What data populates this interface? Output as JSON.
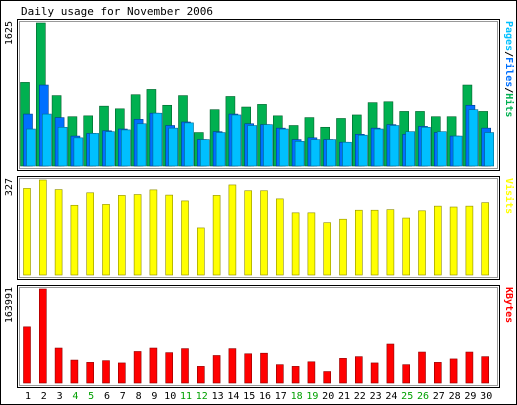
{
  "colors": {
    "page_bg": "#ffffff",
    "frame": "#000000",
    "inner_border": "#999999",
    "hits": "#00b050",
    "files": "#0070ff",
    "pages": "#00c0ff",
    "visits": "#ffff00",
    "kbytes": "#ff0000",
    "weekday_label": "#000000",
    "weekend_label": "#00a000"
  },
  "chart_data": [
    {
      "type": "bar",
      "title": "Daily usage for November 2006",
      "panel": "hits-files-pages",
      "ylabel": "Pages/Files/Hits",
      "ylabel_parts": [
        {
          "text": "Pages",
          "color": "#00c0ff"
        },
        {
          "text": "/",
          "color": "#000000"
        },
        {
          "text": "Files",
          "color": "#0070ff"
        },
        {
          "text": "/",
          "color": "#000000"
        },
        {
          "text": "Hits",
          "color": "#00b050"
        }
      ],
      "max_label": "1625",
      "ylim": [
        0,
        1625
      ],
      "categories": [
        "1",
        "2",
        "3",
        "4",
        "5",
        "6",
        "7",
        "8",
        "9",
        "10",
        "11",
        "12",
        "13",
        "14",
        "15",
        "16",
        "17",
        "18",
        "19",
        "20",
        "21",
        "22",
        "23",
        "24",
        "25",
        "26",
        "27",
        "28",
        "29",
        "30"
      ],
      "series": [
        {
          "name": "Hits",
          "color": "#00b050",
          "values": [
            950,
            1625,
            800,
            560,
            570,
            680,
            650,
            810,
            870,
            690,
            800,
            380,
            640,
            790,
            670,
            700,
            570,
            460,
            550,
            440,
            540,
            580,
            720,
            730,
            620,
            620,
            560,
            560,
            920,
            620
          ]
        },
        {
          "name": "Files",
          "color": "#0070ff",
          "values": [
            590,
            920,
            550,
            340,
            370,
            400,
            420,
            530,
            600,
            460,
            500,
            300,
            390,
            590,
            480,
            470,
            430,
            300,
            320,
            300,
            270,
            360,
            430,
            470,
            360,
            450,
            380,
            340,
            690,
            430
          ]
        },
        {
          "name": "Pages",
          "color": "#00c0ff",
          "values": [
            420,
            590,
            440,
            320,
            370,
            390,
            410,
            480,
            600,
            430,
            490,
            300,
            380,
            580,
            460,
            470,
            420,
            280,
            300,
            300,
            270,
            350,
            420,
            460,
            390,
            440,
            390,
            340,
            640,
            380
          ]
        }
      ]
    },
    {
      "type": "bar",
      "panel": "visits",
      "ylabel": "Visits",
      "max_label": "327",
      "ylim": [
        0,
        327
      ],
      "categories": [
        "1",
        "2",
        "3",
        "4",
        "5",
        "6",
        "7",
        "8",
        "9",
        "10",
        "11",
        "12",
        "13",
        "14",
        "15",
        "16",
        "17",
        "18",
        "19",
        "20",
        "21",
        "22",
        "23",
        "24",
        "25",
        "26",
        "27",
        "28",
        "29",
        "30"
      ],
      "series": [
        {
          "name": "Visits",
          "color": "#ffff00",
          "values": [
            298,
            327,
            294,
            240,
            283,
            243,
            274,
            277,
            293,
            275,
            255,
            162,
            274,
            310,
            290,
            290,
            262,
            214,
            214,
            180,
            192,
            223,
            223,
            225,
            196,
            221,
            237,
            234,
            237,
            249
          ]
        }
      ]
    },
    {
      "type": "bar",
      "panel": "kbytes",
      "ylabel": "KBytes",
      "max_label": "163991",
      "ylim": [
        0,
        163991
      ],
      "categories": [
        "1",
        "2",
        "3",
        "4",
        "5",
        "6",
        "7",
        "8",
        "9",
        "10",
        "11",
        "12",
        "13",
        "14",
        "15",
        "16",
        "17",
        "18",
        "19",
        "20",
        "21",
        "22",
        "23",
        "24",
        "25",
        "26",
        "27",
        "28",
        "29",
        "30"
      ],
      "series": [
        {
          "name": "KBytes",
          "color": "#ff0000",
          "values": [
            98000,
            163991,
            61000,
            40000,
            36000,
            39000,
            35000,
            55000,
            61000,
            53000,
            60000,
            29000,
            48000,
            60000,
            51000,
            52000,
            32000,
            29000,
            37000,
            20000,
            43000,
            46000,
            35000,
            68000,
            32000,
            54000,
            36000,
            42000,
            54000,
            46000
          ]
        }
      ]
    }
  ],
  "day_labels": [
    "1",
    "2",
    "3",
    "4",
    "5",
    "6",
    "7",
    "8",
    "9",
    "10",
    "11",
    "12",
    "13",
    "14",
    "15",
    "16",
    "17",
    "18",
    "19",
    "20",
    "21",
    "22",
    "23",
    "24",
    "25",
    "26",
    "27",
    "28",
    "29",
    "30"
  ],
  "weekend_days": [
    "4",
    "5",
    "11",
    "12",
    "18",
    "19",
    "25",
    "26"
  ]
}
